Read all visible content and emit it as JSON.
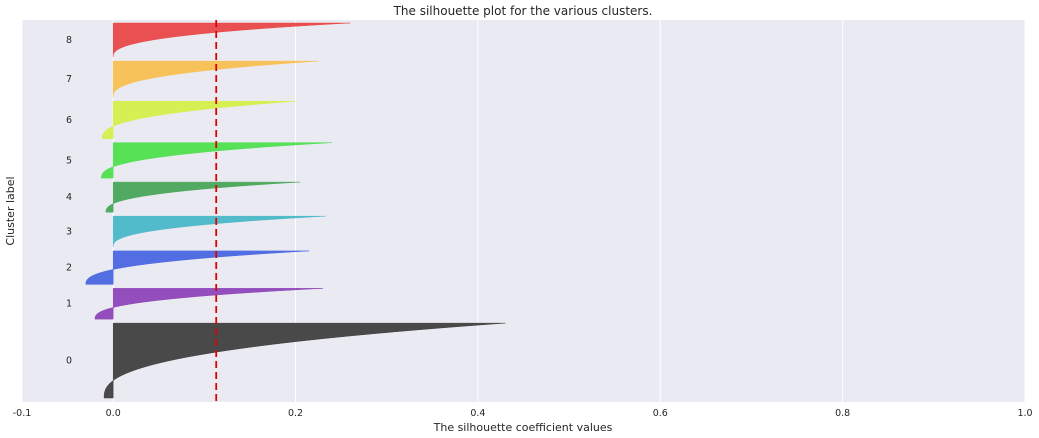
{
  "chart_data": {
    "type": "area",
    "title": "The silhouette plot for the various clusters.",
    "xlabel": "The silhouette coefficient values",
    "ylabel": "Cluster label",
    "xlim": [
      -0.1,
      1.0
    ],
    "xticks": [
      -0.1,
      0.0,
      0.2,
      0.4,
      0.6,
      0.8,
      1.0
    ],
    "x_tick_labels": [
      "-0.1",
      "0.0",
      "0.2",
      "0.4",
      "0.6",
      "0.8",
      "1.0"
    ],
    "grid": true,
    "average_silhouette_score": 0.113,
    "clusters": [
      {
        "label": "0",
        "color": "#404040",
        "max": 0.43,
        "min": -0.01,
        "size_weight": 5.6
      },
      {
        "label": "1",
        "color": "#8e44b8",
        "max": 0.23,
        "min": -0.02,
        "size_weight": 2.3
      },
      {
        "label": "2",
        "color": "#4a67e0",
        "max": 0.215,
        "min": -0.03,
        "size_weight": 2.5
      },
      {
        "label": "3",
        "color": "#4ab8c8",
        "max": 0.233,
        "min": 0.0,
        "size_weight": 2.3
      },
      {
        "label": "4",
        "color": "#4aa75a",
        "max": 0.205,
        "min": -0.008,
        "size_weight": 2.25
      },
      {
        "label": "5",
        "color": "#4ee04e",
        "max": 0.24,
        "min": -0.013,
        "size_weight": 2.65
      },
      {
        "label": "6",
        "color": "#d5f04a",
        "max": 0.2,
        "min": -0.012,
        "size_weight": 2.8
      },
      {
        "label": "7",
        "color": "#f8c050",
        "max": 0.225,
        "min": 0.0,
        "size_weight": 2.7
      },
      {
        "label": "8",
        "color": "#e84848",
        "max": 0.26,
        "min": 0.0,
        "size_weight": 2.55
      }
    ],
    "colors": {
      "plot_bg": "#eaeaf2",
      "grid": "#ffffff",
      "average_line": "#e00000"
    }
  }
}
